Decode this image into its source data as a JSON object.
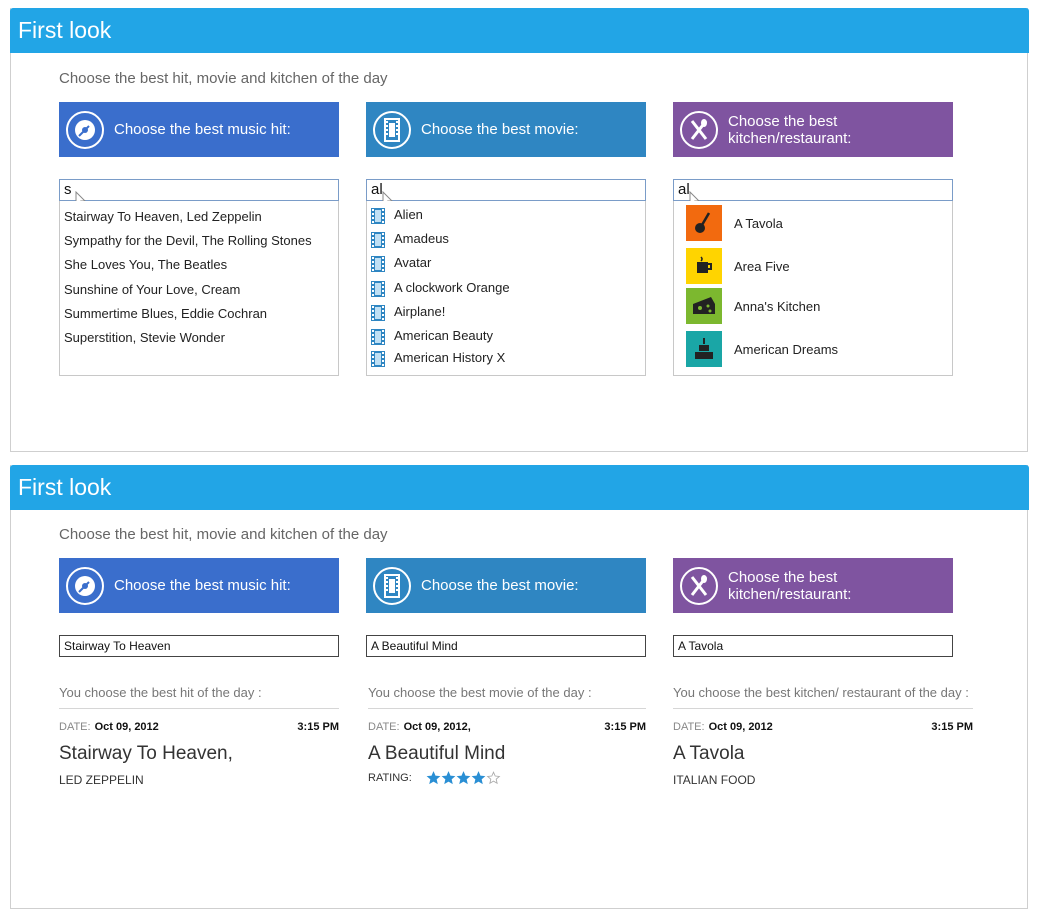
{
  "panel1": {
    "title": "First look",
    "subtitle": "Choose the best hit, movie and kitchen of the day",
    "tiles": {
      "music": "Choose the best music hit:",
      "movie": "Choose the best movie:",
      "food": "Choose the best kitchen/restaurant:"
    },
    "inputs": {
      "music": "s",
      "movie": "al",
      "food": "al"
    },
    "music_suggestions": [
      "Stairway To Heaven, Led Zeppelin",
      "Sympathy for the Devil, The Rolling Stones",
      "She Loves You, The Beatles",
      "Sunshine of Your Love, Cream",
      "Summertime Blues, Eddie Cochran",
      "Superstition, Stevie Wonder"
    ],
    "movie_suggestions": [
      "Alien",
      "Amadeus",
      "Avatar",
      "A clockwork Orange",
      "Airplane!",
      "American Beauty",
      "American History X"
    ],
    "food_suggestions": [
      {
        "name": "A Tavola",
        "icon": "ladle-icon",
        "color": "#f26a0f"
      },
      {
        "name": "Area Five",
        "icon": "coffee-cup-icon",
        "color": "#ffd400"
      },
      {
        "name": "Anna's Kitchen",
        "icon": "cheese-icon",
        "color": "#7cb82f"
      },
      {
        "name": "American Dreams",
        "icon": "cake-icon",
        "color": "#1aa6a6"
      }
    ]
  },
  "panel2": {
    "title": "First look",
    "subtitle": "Choose the best hit, movie and kitchen of the day",
    "tiles": {
      "music": "Choose the best music hit:",
      "movie": "Choose the best movie:",
      "food": "Choose the best kitchen/restaurant:"
    },
    "inputs": {
      "music": "Stairway To Heaven",
      "movie": "A Beautiful Mind",
      "food": "A Tavola"
    },
    "results": {
      "music": {
        "heading": "You choose the best hit of the day :",
        "date_label": "DATE:",
        "date": "Oct 09, 2012",
        "time": "3:15 PM",
        "title": "Stairway To Heaven,",
        "sub": "LED ZEPPELIN"
      },
      "movie": {
        "heading": "You choose the best movie of the day :",
        "date_label": "DATE:",
        "date": "Oct 09, 2012,",
        "time": "3:15 PM",
        "title": "A Beautiful Mind",
        "rating_label": "RATING:",
        "rating": 4,
        "rating_max": 5
      },
      "food": {
        "heading": "You choose the best kitchen/ restaurant of the day :",
        "date_label": "DATE:",
        "date": "Oct 09, 2012",
        "time": "3:15 PM",
        "title": "A Tavola",
        "sub": "ITALIAN FOOD"
      }
    }
  },
  "colors": {
    "header": "#22a5e6",
    "music": "#3a6ecc",
    "movie": "#2f86c2",
    "food": "#7f54a0",
    "star": "#2a8fd4"
  }
}
